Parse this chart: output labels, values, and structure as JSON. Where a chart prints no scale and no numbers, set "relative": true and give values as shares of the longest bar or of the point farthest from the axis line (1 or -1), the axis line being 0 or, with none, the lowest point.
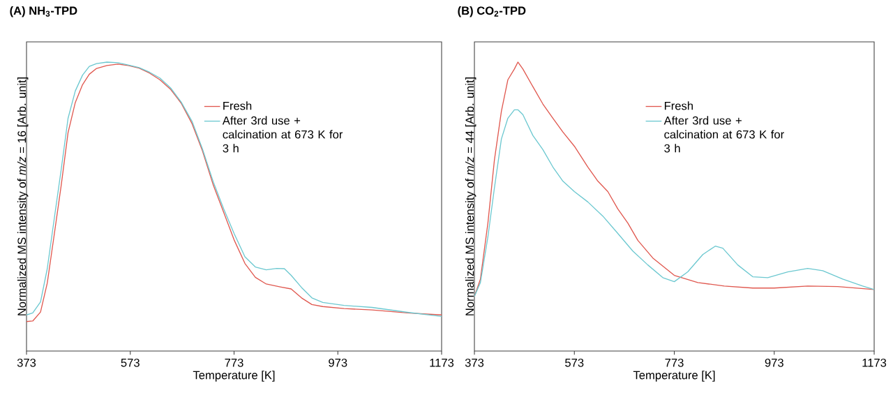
{
  "chart_data": [
    {
      "type": "line",
      "title": "(A) NH$_{3}$-TPD",
      "xlabel": "Temperature [K]",
      "ylabel": "Normalized MS intensity of *m/z* = 16 [Arb. unit]",
      "relative": true,
      "xlim": [
        373,
        1173
      ],
      "xticks": [
        373,
        573,
        773,
        973,
        1173
      ],
      "legend": "top right",
      "series": [
        {
          "name": "Fresh",
          "color": "#e0584f",
          "x": [
            373,
            385,
            400,
            413,
            427,
            440,
            453,
            467,
            481,
            494,
            508,
            528,
            549,
            569,
            590,
            610,
            630,
            651,
            671,
            692,
            712,
            733,
            753,
            773,
            794,
            814,
            835,
            862,
            883,
            903,
            923,
            944,
            985,
            1039,
            1107,
            1173
          ],
          "values": [
            0.102,
            0.104,
            0.135,
            0.235,
            0.41,
            0.575,
            0.755,
            0.86,
            0.922,
            0.958,
            0.978,
            0.988,
            0.993,
            0.988,
            0.979,
            0.962,
            0.939,
            0.905,
            0.858,
            0.787,
            0.693,
            0.574,
            0.48,
            0.385,
            0.303,
            0.255,
            0.232,
            0.222,
            0.215,
            0.184,
            0.161,
            0.154,
            0.147,
            0.142,
            0.132,
            0.125
          ]
        },
        {
          "name": "After 3rd use + calcination at 673 K for 3 h",
          "color": "#6cc8d0",
          "x": [
            373,
            385,
            400,
            413,
            427,
            440,
            453,
            467,
            481,
            494,
            508,
            528,
            549,
            569,
            590,
            610,
            630,
            651,
            671,
            692,
            712,
            733,
            753,
            773,
            794,
            814,
            835,
            855,
            870,
            883,
            903,
            923,
            944,
            985,
            1039,
            1107,
            1173
          ],
          "values": [
            0.125,
            0.132,
            0.17,
            0.285,
            0.465,
            0.63,
            0.805,
            0.9,
            0.955,
            0.985,
            0.995,
            1.0,
            0.998,
            0.99,
            0.981,
            0.965,
            0.945,
            0.91,
            0.862,
            0.795,
            0.7,
            0.585,
            0.492,
            0.407,
            0.326,
            0.291,
            0.281,
            0.286,
            0.285,
            0.262,
            0.22,
            0.184,
            0.168,
            0.158,
            0.151,
            0.134,
            0.12
          ]
        }
      ]
    },
    {
      "type": "line",
      "title": "(B) CO$_{2}$-TPD",
      "xlabel": "Temperature [K]",
      "ylabel": "Normalized MS intensity of *m/z* = 44 [Arb. unit]",
      "relative": true,
      "xlim": [
        373,
        1173
      ],
      "xticks": [
        373,
        573,
        773,
        973,
        1173
      ],
      "legend": "top right",
      "series": [
        {
          "name": "Fresh",
          "color": "#e0584f",
          "x": [
            373,
            385,
            400,
            413,
            427,
            440,
            453,
            460,
            470,
            490,
            510,
            530,
            550,
            573,
            600,
            620,
            640,
            660,
            680,
            700,
            730,
            773,
            820,
            873,
            930,
            973,
            1040,
            1100,
            1173
          ],
          "values": [
            0.189,
            0.249,
            0.443,
            0.661,
            0.83,
            0.939,
            0.976,
            1.0,
            0.976,
            0.915,
            0.855,
            0.806,
            0.758,
            0.709,
            0.637,
            0.588,
            0.552,
            0.492,
            0.443,
            0.383,
            0.322,
            0.262,
            0.237,
            0.225,
            0.218,
            0.218,
            0.225,
            0.223,
            0.213
          ]
        },
        {
          "name": "After 3rd use + calcination at 673 K for 3 h",
          "color": "#6cc8d0",
          "x": [
            373,
            385,
            400,
            413,
            427,
            440,
            453,
            460,
            470,
            490,
            510,
            530,
            550,
            573,
            600,
            630,
            660,
            690,
            720,
            750,
            773,
            800,
            830,
            855,
            870,
            900,
            930,
            960,
            1000,
            1040,
            1070,
            1110,
            1150,
            1173
          ],
          "values": [
            0.189,
            0.237,
            0.395,
            0.564,
            0.734,
            0.806,
            0.835,
            0.835,
            0.818,
            0.746,
            0.697,
            0.637,
            0.588,
            0.552,
            0.516,
            0.467,
            0.407,
            0.346,
            0.298,
            0.254,
            0.24,
            0.274,
            0.334,
            0.363,
            0.356,
            0.298,
            0.257,
            0.254,
            0.274,
            0.286,
            0.278,
            0.249,
            0.225,
            0.213
          ]
        }
      ]
    }
  ]
}
